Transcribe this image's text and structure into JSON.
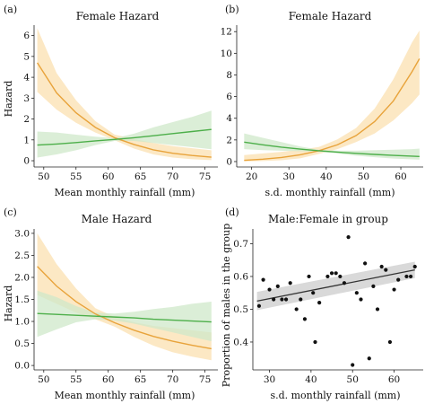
{
  "chart_data": [
    {
      "panel": "(a)",
      "type": "line",
      "title": "Female Hazard",
      "xlabel": "Mean monthly rainfall (mm)",
      "ylabel": "Hazard",
      "xlim": [
        48.5,
        77
      ],
      "ylim": [
        -0.3,
        6.5
      ],
      "xticks": [
        50,
        55,
        60,
        65,
        70,
        75
      ],
      "yticks": [
        0,
        1,
        2,
        3,
        4,
        5,
        6
      ],
      "grid": false,
      "series": [
        {
          "color": "#E8A33B",
          "band_color": "#FBE0B0",
          "x": [
            49,
            52,
            55,
            58,
            61,
            64,
            67,
            70,
            73,
            76
          ],
          "y": [
            4.7,
            3.25,
            2.3,
            1.6,
            1.1,
            0.78,
            0.52,
            0.36,
            0.25,
            0.17
          ],
          "lower": [
            3.3,
            2.45,
            1.82,
            1.35,
            0.98,
            0.58,
            0.3,
            0.15,
            0.07,
            0.03
          ],
          "upper": [
            6.35,
            4.2,
            2.9,
            1.9,
            1.25,
            1.05,
            0.85,
            0.7,
            0.6,
            0.5
          ]
        },
        {
          "color": "#4DAF4A",
          "band_color": "#CFE8CA",
          "x": [
            49,
            52,
            55,
            58,
            61,
            64,
            67,
            70,
            73,
            76
          ],
          "y": [
            0.75,
            0.8,
            0.87,
            0.95,
            1.02,
            1.1,
            1.2,
            1.3,
            1.4,
            1.5
          ],
          "lower": [
            0.15,
            0.3,
            0.5,
            0.75,
            0.95,
            0.95,
            0.85,
            0.75,
            0.65,
            0.55
          ],
          "upper": [
            1.4,
            1.35,
            1.25,
            1.15,
            1.08,
            1.3,
            1.6,
            1.85,
            2.1,
            2.4
          ]
        }
      ]
    },
    {
      "panel": "(b)",
      "type": "line",
      "title": "Female Hazard",
      "xlabel": "s.d. monthly rainfall (mm)",
      "ylabel": "",
      "xlim": [
        16,
        66
      ],
      "ylim": [
        -0.5,
        12.6
      ],
      "xticks": [
        20,
        30,
        40,
        50,
        60
      ],
      "yticks": [
        0,
        2,
        4,
        6,
        8,
        10,
        12
      ],
      "grid": false,
      "series": [
        {
          "color": "#E8A33B",
          "band_color": "#FBE0B0",
          "x": [
            18,
            23,
            28,
            33,
            38,
            43,
            48,
            53,
            58,
            63,
            65
          ],
          "y": [
            0.12,
            0.22,
            0.38,
            0.62,
            1.0,
            1.55,
            2.4,
            3.7,
            5.6,
            8.3,
            9.5
          ],
          "lower": [
            0.02,
            0.05,
            0.12,
            0.3,
            0.7,
            1.15,
            1.8,
            2.6,
            3.8,
            5.4,
            6.2
          ],
          "upper": [
            0.6,
            0.75,
            0.9,
            1.1,
            1.35,
            2.05,
            3.1,
            4.9,
            7.6,
            11.0,
            12.1
          ]
        },
        {
          "color": "#4DAF4A",
          "band_color": "#CFE8CA",
          "x": [
            18,
            23,
            28,
            33,
            38,
            43,
            48,
            53,
            58,
            63,
            65
          ],
          "y": [
            1.8,
            1.55,
            1.33,
            1.15,
            1.0,
            0.87,
            0.76,
            0.66,
            0.57,
            0.5,
            0.47
          ],
          "lower": [
            1.15,
            1.05,
            1.0,
            0.95,
            0.9,
            0.75,
            0.55,
            0.4,
            0.28,
            0.2,
            0.17
          ],
          "upper": [
            2.6,
            2.2,
            1.8,
            1.4,
            1.1,
            1.0,
            1.0,
            1.05,
            1.1,
            1.15,
            1.2
          ]
        }
      ]
    },
    {
      "panel": "(c)",
      "type": "line",
      "title": "Male Hazard",
      "xlabel": "Mean monthly rainfall (mm)",
      "ylabel": "Hazard",
      "xlim": [
        48.5,
        77
      ],
      "ylim": [
        -0.1,
        3.1
      ],
      "xticks": [
        50,
        55,
        60,
        65,
        70,
        75
      ],
      "yticks": [
        0.0,
        0.5,
        1.0,
        1.5,
        2.0,
        2.5,
        3.0
      ],
      "grid": false,
      "series": [
        {
          "color": "#E8A33B",
          "band_color": "#FBE0B0",
          "x": [
            49,
            52,
            55,
            58,
            61,
            64,
            67,
            70,
            73,
            76
          ],
          "y": [
            2.25,
            1.8,
            1.45,
            1.17,
            0.97,
            0.8,
            0.66,
            0.55,
            0.46,
            0.38
          ],
          "lower": [
            1.6,
            1.4,
            1.2,
            1.05,
            0.88,
            0.65,
            0.45,
            0.3,
            0.2,
            0.12
          ],
          "upper": [
            3.0,
            2.3,
            1.75,
            1.3,
            1.1,
            0.98,
            0.9,
            0.85,
            0.8,
            0.75
          ]
        },
        {
          "color": "#4DAF4A",
          "band_color": "#CFE8CA",
          "x": [
            49,
            52,
            55,
            58,
            61,
            64,
            67,
            70,
            73,
            76
          ],
          "y": [
            1.18,
            1.16,
            1.14,
            1.12,
            1.1,
            1.08,
            1.05,
            1.03,
            1.01,
            0.99
          ],
          "lower": [
            0.65,
            0.82,
            0.98,
            1.05,
            1.02,
            0.95,
            0.85,
            0.75,
            0.65,
            0.55
          ],
          "upper": [
            1.7,
            1.55,
            1.35,
            1.2,
            1.18,
            1.22,
            1.28,
            1.33,
            1.4,
            1.45
          ]
        }
      ]
    },
    {
      "panel": "(d)",
      "type": "scatter",
      "title": "Male:Female in group",
      "xlabel": "s.d. monthly rainfall (mm)",
      "ylabel": "Proportion of males in the group",
      "xlim": [
        26,
        67
      ],
      "ylim": [
        0.315,
        0.745
      ],
      "xticks": [
        30,
        40,
        50,
        60
      ],
      "yticks": [
        0.4,
        0.5,
        0.6,
        0.7
      ],
      "grid": false,
      "points": {
        "color": "#111111",
        "x": [
          27.5,
          28.5,
          30,
          31,
          32,
          33,
          34,
          35,
          36.5,
          37.5,
          38.5,
          39.5,
          40.5,
          41,
          42,
          44,
          45,
          46,
          47,
          48,
          49,
          50,
          51,
          52,
          53,
          54,
          55,
          56,
          57,
          58,
          59,
          60,
          61,
          63,
          64,
          65
        ],
        "y": [
          0.51,
          0.59,
          0.56,
          0.53,
          0.57,
          0.53,
          0.53,
          0.58,
          0.5,
          0.53,
          0.47,
          0.6,
          0.55,
          0.4,
          0.52,
          0.6,
          0.61,
          0.61,
          0.6,
          0.58,
          0.72,
          0.33,
          0.55,
          0.53,
          0.64,
          0.35,
          0.57,
          0.5,
          0.63,
          0.62,
          0.4,
          0.56,
          0.59,
          0.6,
          0.6,
          0.63
        ]
      },
      "fit": {
        "color": "#333333",
        "band_color": "#D9D9D9",
        "x": [
          27,
          65
        ],
        "y": [
          0.525,
          0.62
        ],
        "lower": [
          0.497,
          0.595
        ],
        "upper": [
          0.553,
          0.645
        ]
      }
    }
  ]
}
